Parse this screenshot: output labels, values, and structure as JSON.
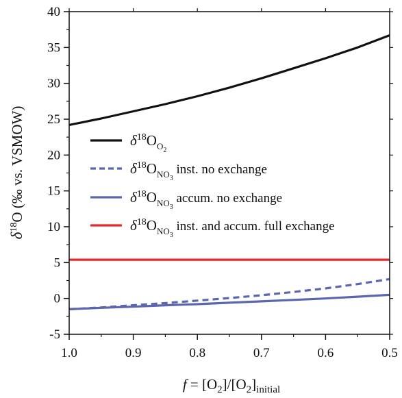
{
  "chart_data": {
    "type": "line",
    "xlabel": {
      "italic_var": "f",
      "eq": " = [O",
      "sub1": "2",
      "mid": "]/[O",
      "sub2": "2",
      "close": "]",
      "sub3": "initial"
    },
    "ylabel": {
      "delta": "δ",
      "sup": "18",
      "rest": "O (‰ vs. VSMOW)"
    },
    "xlim": [
      1.0,
      0.5
    ],
    "ylim": [
      -5,
      40
    ],
    "x_reversed": true,
    "x_ticks": [
      1.0,
      0.9,
      0.8,
      0.7,
      0.6,
      0.5
    ],
    "x_tick_labels": [
      "1.0",
      "0.9",
      "0.8",
      "0.7",
      "0.6",
      "0.5"
    ],
    "y_ticks": [
      -5,
      0,
      5,
      10,
      15,
      20,
      25,
      30,
      35,
      40
    ],
    "y_tick_labels": [
      "-5",
      "0",
      "5",
      "10",
      "15",
      "20",
      "25",
      "30",
      "35",
      "40"
    ],
    "grid": false,
    "legend_position": "center-left",
    "series": [
      {
        "sym": {
          "delta": "δ",
          "sup": "18",
          "base": "O",
          "sub": "O",
          "subsub": "2"
        },
        "label_text": "",
        "color": "#111111",
        "dash": "solid",
        "x": [
          1.0,
          0.95,
          0.9,
          0.85,
          0.8,
          0.75,
          0.7,
          0.65,
          0.6,
          0.55,
          0.5
        ],
        "y": [
          24.2,
          25.1,
          26.1,
          27.1,
          28.2,
          29.4,
          30.7,
          32.1,
          33.5,
          35.0,
          36.7
        ]
      },
      {
        "sym": {
          "delta": "δ",
          "sup": "18",
          "base": "O",
          "sub": "NO",
          "subsub": "3"
        },
        "label_text": " inst. no exchange",
        "color": "#5a66b0",
        "dash": "dashed",
        "x": [
          1.0,
          0.95,
          0.9,
          0.85,
          0.8,
          0.75,
          0.7,
          0.65,
          0.6,
          0.55,
          0.5
        ],
        "y": [
          -1.5,
          -1.25,
          -0.95,
          -0.65,
          -0.3,
          0.05,
          0.45,
          0.9,
          1.4,
          2.0,
          2.7
        ]
      },
      {
        "sym": {
          "delta": "δ",
          "sup": "18",
          "base": "O",
          "sub": "NO",
          "subsub": "3"
        },
        "label_text": " accum. no exchange",
        "color": "#5a66b0",
        "dash": "solid",
        "x": [
          1.0,
          0.95,
          0.9,
          0.85,
          0.8,
          0.75,
          0.7,
          0.65,
          0.6,
          0.55,
          0.5
        ],
        "y": [
          -1.5,
          -1.3,
          -1.15,
          -0.95,
          -0.8,
          -0.6,
          -0.4,
          -0.2,
          0.0,
          0.25,
          0.5
        ]
      },
      {
        "sym": {
          "delta": "δ",
          "sup": "18",
          "base": "O",
          "sub": "NO",
          "subsub": "3"
        },
        "label_text": " inst. and accum. full exchange",
        "color": "#e8262b",
        "dash": "solid",
        "x": [
          1.0,
          0.5
        ],
        "y": [
          5.4,
          5.4
        ]
      }
    ]
  }
}
